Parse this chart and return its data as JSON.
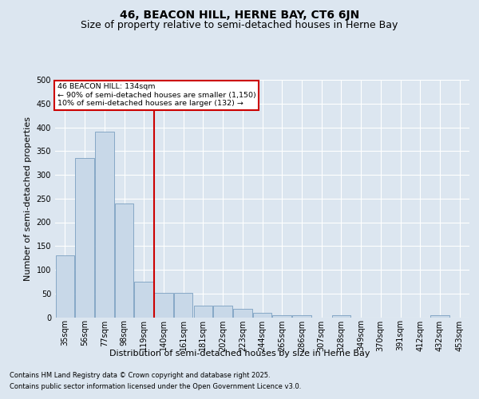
{
  "title": "46, BEACON HILL, HERNE BAY, CT6 6JN",
  "subtitle": "Size of property relative to semi-detached houses in Herne Bay",
  "xlabel": "Distribution of semi-detached houses by size in Herne Bay",
  "ylabel": "Number of semi-detached properties",
  "categories": [
    "35sqm",
    "56sqm",
    "77sqm",
    "98sqm",
    "119sqm",
    "140sqm",
    "161sqm",
    "181sqm",
    "202sqm",
    "223sqm",
    "244sqm",
    "265sqm",
    "286sqm",
    "307sqm",
    "328sqm",
    "349sqm",
    "370sqm",
    "391sqm",
    "412sqm",
    "432sqm",
    "453sqm"
  ],
  "values": [
    130,
    335,
    390,
    240,
    75,
    52,
    52,
    25,
    25,
    18,
    10,
    5,
    5,
    0,
    5,
    0,
    0,
    0,
    0,
    5,
    0
  ],
  "bar_color": "#c8d8e8",
  "bar_edge_color": "#7a9fc0",
  "red_line_x": 4.5,
  "annotation_title": "46 BEACON HILL: 134sqm",
  "annotation_line1": "← 90% of semi-detached houses are smaller (1,150)",
  "annotation_line2": "10% of semi-detached houses are larger (132) →",
  "annotation_box_color": "#ffffff",
  "annotation_box_edge": "#cc0000",
  "red_line_color": "#cc0000",
  "ylim": [
    0,
    500
  ],
  "yticks": [
    0,
    50,
    100,
    150,
    200,
    250,
    300,
    350,
    400,
    450,
    500
  ],
  "fig_background": "#dce6f0",
  "plot_background": "#dce6f0",
  "footer_line1": "Contains HM Land Registry data © Crown copyright and database right 2025.",
  "footer_line2": "Contains public sector information licensed under the Open Government Licence v3.0.",
  "title_fontsize": 10,
  "subtitle_fontsize": 9,
  "axis_label_fontsize": 8,
  "tick_fontsize": 7,
  "footer_fontsize": 6
}
